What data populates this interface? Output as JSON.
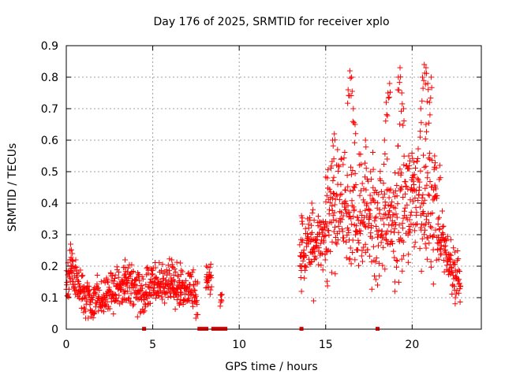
{
  "chart_data": {
    "type": "scatter",
    "title": "Day 176 of 2025, SRMTID for receiver xplo",
    "xlabel": "GPS time / hours",
    "ylabel": "SRMTID / TECUs",
    "xlim": [
      0,
      24
    ],
    "ylim": [
      0,
      0.9
    ],
    "x_ticks": [
      0,
      5,
      10,
      15,
      20
    ],
    "y_ticks": [
      0,
      0.1,
      0.2,
      0.3,
      0.4,
      0.5,
      0.6,
      0.7,
      0.8,
      0.9
    ],
    "grid": true,
    "marker": "+",
    "series_color": "#ff0000",
    "series": [
      {
        "name": "SRMTID",
        "segments": [
          {
            "x_start": 0.0,
            "x_end": 4.6,
            "envelope": [
              [
                0.0,
                0.15
              ],
              [
                0.3,
                0.18
              ],
              [
                0.8,
                0.12
              ],
              [
                1.5,
                0.09
              ],
              [
                2.3,
                0.11
              ],
              [
                3.0,
                0.13
              ],
              [
                3.6,
                0.14
              ],
              [
                4.1,
                0.12
              ],
              [
                4.6,
                0.1
              ]
            ],
            "spread": 0.05
          },
          {
            "x_start": 4.6,
            "x_end": 7.6,
            "envelope": [
              [
                4.6,
                0.11
              ],
              [
                5.0,
                0.14
              ],
              [
                5.5,
                0.16
              ],
              [
                6.0,
                0.15
              ],
              [
                6.5,
                0.13
              ],
              [
                7.0,
                0.12
              ],
              [
                7.6,
                0.1
              ]
            ],
            "spread": 0.05
          },
          {
            "x_start": 8.1,
            "x_end": 8.4,
            "envelope": [
              [
                8.1,
                0.14
              ],
              [
                8.4,
                0.16
              ]
            ],
            "spread": 0.04
          },
          {
            "x_start": 8.9,
            "x_end": 9.0,
            "envelope": [
              [
                8.9,
                0.09
              ],
              [
                9.0,
                0.1
              ]
            ],
            "spread": 0.02
          },
          {
            "x_start": 13.5,
            "x_end": 15.0,
            "envelope": [
              [
                13.5,
                0.22
              ],
              [
                14.0,
                0.26
              ],
              [
                14.5,
                0.28
              ],
              [
                15.0,
                0.3
              ]
            ],
            "spread": 0.08
          },
          {
            "x_start": 15.0,
            "x_end": 17.0,
            "envelope": [
              [
                15.0,
                0.32
              ],
              [
                15.5,
                0.36
              ],
              [
                16.0,
                0.38
              ],
              [
                16.5,
                0.34
              ],
              [
                17.0,
                0.35
              ]
            ],
            "spread": 0.14
          },
          {
            "x_start": 17.0,
            "x_end": 19.0,
            "envelope": [
              [
                17.0,
                0.33
              ],
              [
                17.5,
                0.34
              ],
              [
                18.0,
                0.32
              ],
              [
                18.5,
                0.35
              ],
              [
                19.0,
                0.3
              ]
            ],
            "spread": 0.14
          },
          {
            "x_start": 19.0,
            "x_end": 21.5,
            "envelope": [
              [
                19.0,
                0.35
              ],
              [
                19.5,
                0.4
              ],
              [
                20.0,
                0.42
              ],
              [
                20.5,
                0.4
              ],
              [
                21.0,
                0.38
              ],
              [
                21.5,
                0.36
              ]
            ],
            "spread": 0.15
          },
          {
            "x_start": 21.5,
            "x_end": 22.8,
            "envelope": [
              [
                21.5,
                0.3
              ],
              [
                22.0,
                0.25
              ],
              [
                22.4,
                0.18
              ],
              [
                22.8,
                0.15
              ]
            ],
            "spread": 0.06
          }
        ],
        "peaks": [
          [
            0.25,
            0.27
          ],
          [
            0.35,
            0.24
          ],
          [
            3.4,
            0.22
          ],
          [
            6.1,
            0.22
          ],
          [
            6.6,
            0.21
          ],
          [
            8.1,
            0.2
          ],
          [
            13.6,
            0.36
          ],
          [
            14.2,
            0.4
          ],
          [
            15.1,
            0.48
          ],
          [
            15.4,
            0.6
          ],
          [
            15.5,
            0.62
          ],
          [
            16.3,
            0.76
          ],
          [
            16.4,
            0.82
          ],
          [
            16.5,
            0.8
          ],
          [
            16.6,
            0.7
          ],
          [
            16.7,
            0.65
          ],
          [
            17.3,
            0.6
          ],
          [
            17.6,
            0.5
          ],
          [
            18.4,
            0.6
          ],
          [
            18.5,
            0.72
          ],
          [
            18.6,
            0.75
          ],
          [
            18.7,
            0.78
          ],
          [
            19.3,
            0.83
          ],
          [
            19.2,
            0.8
          ],
          [
            19.4,
            0.75
          ],
          [
            19.5,
            0.7
          ],
          [
            19.8,
            0.55
          ],
          [
            20.1,
            0.53
          ],
          [
            20.5,
            0.7
          ],
          [
            20.6,
            0.8
          ],
          [
            20.7,
            0.84
          ],
          [
            20.8,
            0.83
          ],
          [
            20.9,
            0.78
          ],
          [
            21.0,
            0.72
          ],
          [
            20.8,
            0.65
          ],
          [
            21.1,
            0.8
          ],
          [
            21.3,
            0.55
          ],
          [
            21.6,
            0.52
          ]
        ],
        "dropouts": [
          [
            19.0,
            0.15
          ],
          [
            22.5,
            0.1
          ],
          [
            18.0,
            0.14
          ],
          [
            19.0,
            0.12
          ],
          [
            14.3,
            0.09
          ],
          [
            13.6,
            0.12
          ]
        ]
      }
    ],
    "zero_markers": [
      4.5,
      7.7,
      7.9,
      8.1,
      8.5,
      8.7,
      8.9,
      9.1,
      9.2,
      13.6,
      18.0
    ]
  }
}
